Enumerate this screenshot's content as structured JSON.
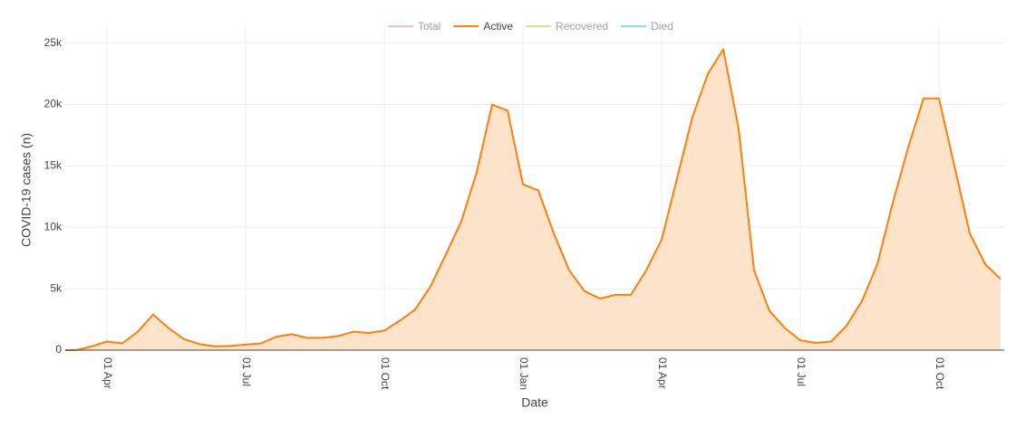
{
  "chart_data": {
    "type": "area",
    "x_label": "Date",
    "y_label": "COVID-19 cases (n)",
    "x": [
      "01 Mar",
      "11 Mar",
      "21 Mar",
      "01 Apr",
      "11 Apr",
      "21 Apr",
      "01 May",
      "11 May",
      "21 May",
      "01 Jun",
      "11 Jun",
      "21 Jun",
      "01 Jul",
      "11 Jul",
      "21 Jul",
      "01 Aug",
      "11 Aug",
      "21 Aug",
      "01 Sep",
      "11 Sep",
      "21 Sep",
      "01 Oct",
      "11 Oct",
      "21 Oct",
      "01 Nov",
      "11 Nov",
      "21 Nov",
      "01 Dec",
      "11 Dec",
      "21 Dec",
      "01 Jan",
      "11 Jan",
      "21 Jan",
      "01 Feb",
      "11 Feb",
      "21 Feb",
      "01 Mar",
      "11 Mar",
      "21 Mar",
      "01 Apr",
      "11 Apr",
      "21 Apr",
      "01 May",
      "11 May",
      "21 May",
      "01 Jun",
      "11 Jun",
      "21 Jun",
      "01 Jul",
      "11 Jul",
      "21 Jul",
      "01 Aug",
      "11 Aug",
      "21 Aug",
      "01 Sep",
      "11 Sep",
      "21 Sep",
      "01 Oct",
      "11 Oct",
      "21 Oct",
      "01 Nov",
      "11 Nov"
    ],
    "series": [
      {
        "name": "Total",
        "color": "#e377c2",
        "visible": false
      },
      {
        "name": "Active",
        "color": "#ff7f0e",
        "fill": "#fde3c9",
        "visible": true,
        "values": [
          0,
          0,
          300,
          700,
          550,
          1500,
          2900,
          1800,
          900,
          500,
          300,
          350,
          450,
          550,
          1100,
          1300,
          1000,
          1000,
          1150,
          1500,
          1400,
          1600,
          2400,
          3300,
          5200,
          7800,
          10500,
          14500,
          20000,
          19500,
          13500,
          13000,
          9500,
          6500,
          4800,
          4200,
          4500,
          4500,
          6500,
          9000,
          14000,
          19000,
          22500,
          24500,
          18000,
          6500,
          3200,
          1800,
          800,
          600,
          700,
          2000,
          4000,
          7000,
          12000,
          16500,
          20500,
          20500,
          15000,
          9500,
          7000,
          5800
        ]
      },
      {
        "name": "Recovered",
        "color": "#bcbd22",
        "visible": false
      },
      {
        "name": "Died",
        "color": "#17becf",
        "visible": false
      }
    ],
    "xticks": [
      "01 Apr",
      "01 Jul",
      "01 Oct",
      "01 Jan",
      "01 Apr",
      "01 Jul",
      "01 Oct"
    ],
    "ylim": [
      0,
      26300
    ],
    "yticks": [
      0,
      {
        "value": 5000,
        "label": "5k"
      },
      {
        "value": 10000,
        "label": "10k"
      },
      {
        "value": 15000,
        "label": "15k"
      },
      {
        "value": 20000,
        "label": "20k"
      },
      {
        "value": 25000,
        "label": "25k"
      }
    ],
    "grid": true
  }
}
